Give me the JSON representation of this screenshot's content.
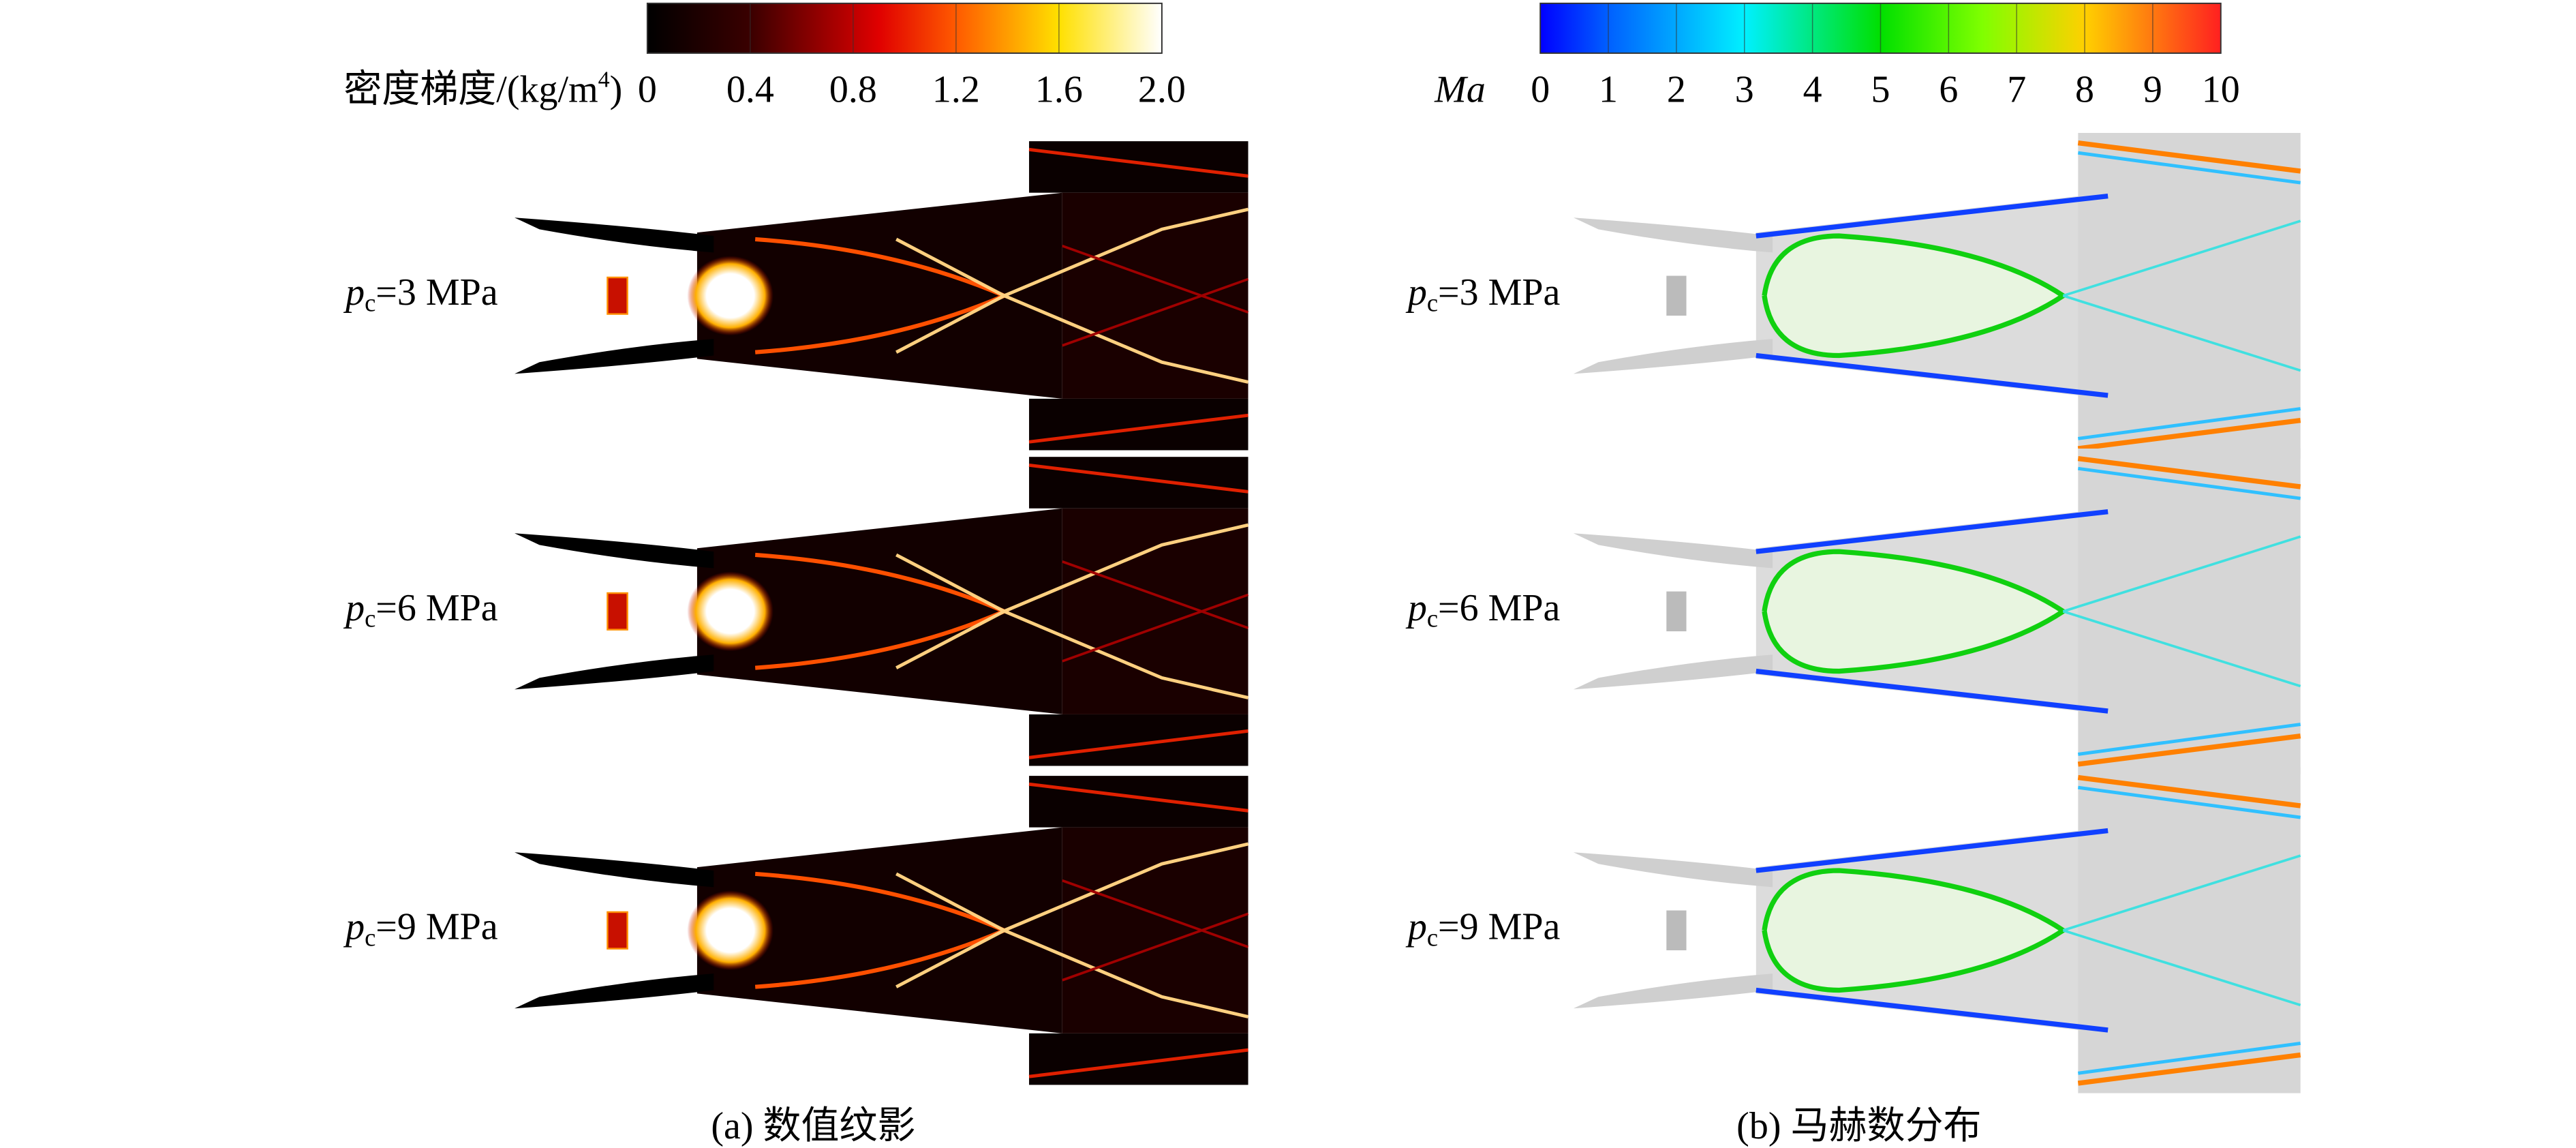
{
  "panels": [
    {
      "colorbar": {
        "label": {
          "text": "密度梯度/(kg/m",
          "sup": "4",
          "end": ")"
        },
        "range": [
          0,
          2
        ],
        "ticks": [
          0,
          0.4,
          0.8,
          1.2,
          1.6,
          {
            "value": 2,
            "label": "2.0"
          }
        ]
      },
      "rows": [
        {
          "symbol": "p",
          "sub": "c",
          "text": "=3 MPa"
        },
        {
          "symbol": "p",
          "sub": "c",
          "text": "=6 MPa"
        },
        {
          "symbol": "p",
          "sub": "c",
          "text": "=9 MPa"
        }
      ],
      "caption": "(a) 数值纹影"
    },
    {
      "colorbar": {
        "label": {
          "text": "Ma"
        },
        "range": [
          0,
          10
        ],
        "ticks": [
          0,
          1,
          2,
          3,
          4,
          5,
          6,
          7,
          8,
          9,
          10
        ]
      },
      "rows": [
        {
          "symbol": "p",
          "sub": "c",
          "text": "=3 MPa"
        },
        {
          "symbol": "p",
          "sub": "c",
          "text": "=6 MPa"
        },
        {
          "symbol": "p",
          "sub": "c",
          "text": "=9 MPa"
        }
      ],
      "caption": "(b) 马赫数分布"
    }
  ]
}
